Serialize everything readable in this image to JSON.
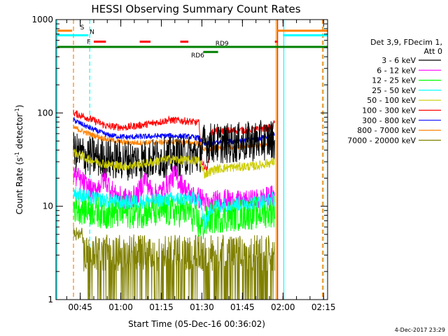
{
  "chart_data": {
    "type": "line",
    "title": "HESSI Observing Summary Count Rates",
    "xlabel": "Start Time (05-Dec-16 00:36:02)",
    "ylabel_main": "Count Rate (s",
    "ylabel_sup1": "-1",
    "ylabel_mid": " detector",
    "ylabel_sup2": "-1",
    "ylabel_end": ")",
    "y_scale": "log",
    "ylim": [
      1,
      1000
    ],
    "xlim_minutes": [
      36.03,
      136.5
    ],
    "x_ticks": [
      {
        "minute": 45,
        "label": "00:45"
      },
      {
        "minute": 60,
        "label": "01:00"
      },
      {
        "minute": 75,
        "label": "01:15"
      },
      {
        "minute": 90,
        "label": "01:30"
      },
      {
        "minute": 105,
        "label": "01:45"
      },
      {
        "minute": 120,
        "label": "02:00"
      },
      {
        "minute": 135,
        "label": "02:15"
      }
    ],
    "y_ticks": [
      {
        "value": 1,
        "label": "1"
      },
      {
        "value": 10,
        "label": "10"
      },
      {
        "value": 100,
        "label": "100"
      },
      {
        "value": 1000,
        "label": "1000"
      }
    ],
    "legend_header": [
      "Det 3,9, FDecim 1,",
      "Att 0"
    ],
    "series": [
      {
        "name": "3 - 6 keV",
        "color": "#000000",
        "base": 38,
        "noise": 0.22,
        "points": [
          [
            42.5,
            38
          ],
          [
            47,
            35
          ],
          [
            55,
            32
          ],
          [
            65,
            31
          ],
          [
            75,
            33
          ],
          [
            85,
            35
          ],
          [
            89,
            36
          ],
          [
            91,
            48
          ],
          [
            100,
            47
          ],
          [
            110,
            50
          ],
          [
            117,
            52
          ]
        ]
      },
      {
        "name": "6 - 12 keV",
        "color": "#ff00ff",
        "base": 14,
        "noise": 0.12,
        "points": [
          [
            42.5,
            22
          ],
          [
            46,
            18
          ],
          [
            50,
            14
          ],
          [
            54,
            20
          ],
          [
            58,
            13
          ],
          [
            62,
            12
          ],
          [
            66,
            13
          ],
          [
            69,
            20
          ],
          [
            72,
            13
          ],
          [
            76,
            15
          ],
          [
            80,
            22
          ],
          [
            82,
            18
          ],
          [
            86,
            13
          ],
          [
            90,
            12
          ],
          [
            93,
            10
          ],
          [
            96,
            12
          ],
          [
            105,
            11
          ],
          [
            112,
            12
          ],
          [
            117,
            13
          ]
        ]
      },
      {
        "name": "12 - 25 keV",
        "color": "#00ff00",
        "base": 9,
        "noise": 0.18,
        "points": [
          [
            42.5,
            10
          ],
          [
            55,
            8.5
          ],
          [
            70,
            8.8
          ],
          [
            85,
            9
          ],
          [
            90,
            6
          ],
          [
            93,
            7.5
          ],
          [
            100,
            8
          ],
          [
            110,
            8.5
          ],
          [
            117,
            9
          ]
        ]
      },
      {
        "name": "25 - 50 keV",
        "color": "#00ffff",
        "base": 12,
        "noise": 0.08,
        "points": [
          [
            42.5,
            14
          ],
          [
            50,
            12
          ],
          [
            60,
            11
          ],
          [
            70,
            11.5
          ],
          [
            80,
            12
          ],
          [
            89,
            12
          ],
          [
            91,
            6.5
          ],
          [
            94,
            10
          ],
          [
            100,
            10.5
          ],
          [
            110,
            11
          ],
          [
            117,
            12
          ]
        ]
      },
      {
        "name": "50 - 100 keV",
        "color": "#cccc00",
        "base": 30,
        "noise": 0.05,
        "points": [
          [
            42.5,
            38
          ],
          [
            48,
            32
          ],
          [
            55,
            28
          ],
          [
            62,
            27
          ],
          [
            70,
            29
          ],
          [
            78,
            32
          ],
          [
            84,
            31
          ],
          [
            89,
            31
          ],
          [
            91,
            22
          ],
          [
            95,
            25
          ],
          [
            100,
            26
          ],
          [
            110,
            27
          ],
          [
            117,
            30
          ]
        ]
      },
      {
        "name": "100 - 300 keV",
        "color": "#ff0000",
        "base": 80,
        "noise": 0.04,
        "points": [
          [
            42.5,
            100
          ],
          [
            48,
            88
          ],
          [
            55,
            72
          ],
          [
            62,
            70
          ],
          [
            70,
            76
          ],
          [
            78,
            84
          ],
          [
            84,
            82
          ],
          [
            89,
            78
          ],
          [
            90,
            30
          ],
          [
            92,
            24
          ],
          [
            93,
            60
          ],
          [
            95,
            64
          ],
          [
            110,
            66
          ],
          [
            116,
            70
          ],
          [
            117,
            80
          ]
        ]
      },
      {
        "name": "300 - 800 keV",
        "color": "#0000ff",
        "base": 55,
        "noise": 0.03,
        "points": [
          [
            42.5,
            84
          ],
          [
            48,
            70
          ],
          [
            55,
            58
          ],
          [
            62,
            55
          ],
          [
            70,
            56
          ],
          [
            78,
            57
          ],
          [
            84,
            56
          ],
          [
            89,
            54
          ],
          [
            91,
            46
          ],
          [
            95,
            48
          ],
          [
            110,
            52
          ],
          [
            117,
            58
          ]
        ]
      },
      {
        "name": "800 - 7000 keV",
        "color": "#ff8000",
        "base": 48,
        "noise": 0.03,
        "points": [
          [
            42.5,
            70
          ],
          [
            48,
            60
          ],
          [
            55,
            52
          ],
          [
            62,
            48
          ],
          [
            70,
            48
          ],
          [
            78,
            49
          ],
          [
            84,
            48
          ],
          [
            89,
            47
          ],
          [
            91,
            40
          ],
          [
            95,
            42
          ],
          [
            110,
            44
          ],
          [
            117,
            48
          ]
        ]
      },
      {
        "name": "7000 - 20000 keV",
        "color": "#808000",
        "base": 2.5,
        "noise": 0.5,
        "points": [
          [
            42.5,
            5
          ],
          [
            45,
            3
          ],
          [
            48,
            2.5
          ],
          [
            60,
            2.4
          ],
          [
            70,
            2.8
          ],
          [
            80,
            3
          ],
          [
            90,
            2.6
          ],
          [
            100,
            2.5
          ],
          [
            110,
            2.6
          ],
          [
            117,
            2.8
          ]
        ]
      }
    ],
    "flags": [
      {
        "name": "S",
        "color": "#ff8000",
        "level": 760,
        "segments": [
          [
            36.5,
            42
          ]
        ],
        "label_minute": 45
      },
      {
        "name": "N",
        "color": "#00ffff",
        "level": 680,
        "segments": [
          [
            36.5,
            48
          ]
        ],
        "label_minute": 48.5
      },
      {
        "name": "F",
        "color": "#ff0000",
        "level": 580,
        "segments": [
          [
            50,
            54.5
          ],
          [
            67,
            71
          ],
          [
            82,
            85
          ],
          [
            117,
            117.8
          ]
        ],
        "label_minute": 47.5
      },
      {
        "name": "RD9",
        "color": "#008000",
        "level": 510,
        "segments": [
          [
            36.5,
            136.5
          ]
        ],
        "label_minute": 95
      },
      {
        "name": "RD6",
        "color": "#008000",
        "level": 450,
        "segments": [
          [
            90.5,
            96
          ]
        ],
        "label_minute": 86
      },
      {
        "name": "S-right",
        "color": "#ff8000",
        "level": 760,
        "segments": [
          [
            118,
            136.5
          ]
        ]
      },
      {
        "name": "N-right",
        "color": "#00ffff",
        "level": 680,
        "segments": [
          [
            120,
            136.5
          ]
        ]
      }
    ],
    "vlines": [
      {
        "minute": 36.4,
        "color": "#00ffff",
        "dash": false
      },
      {
        "minute": 42.5,
        "color": "#ff8000",
        "dash": true
      },
      {
        "minute": 48.5,
        "color": "#00ffff",
        "dash": true
      },
      {
        "minute": 117.5,
        "color": "#ff8000",
        "dash": false
      },
      {
        "minute": 118.0,
        "color": "#ff0000",
        "dash": false
      },
      {
        "minute": 120.3,
        "color": "#00ffff",
        "dash": false
      },
      {
        "minute": 134.6,
        "color": "#ff8000",
        "dash": true
      },
      {
        "minute": 135.0,
        "color": "#00ffff",
        "dash": true
      }
    ],
    "grid": false
  },
  "footer_date": "4-Dec-2017 23:29"
}
